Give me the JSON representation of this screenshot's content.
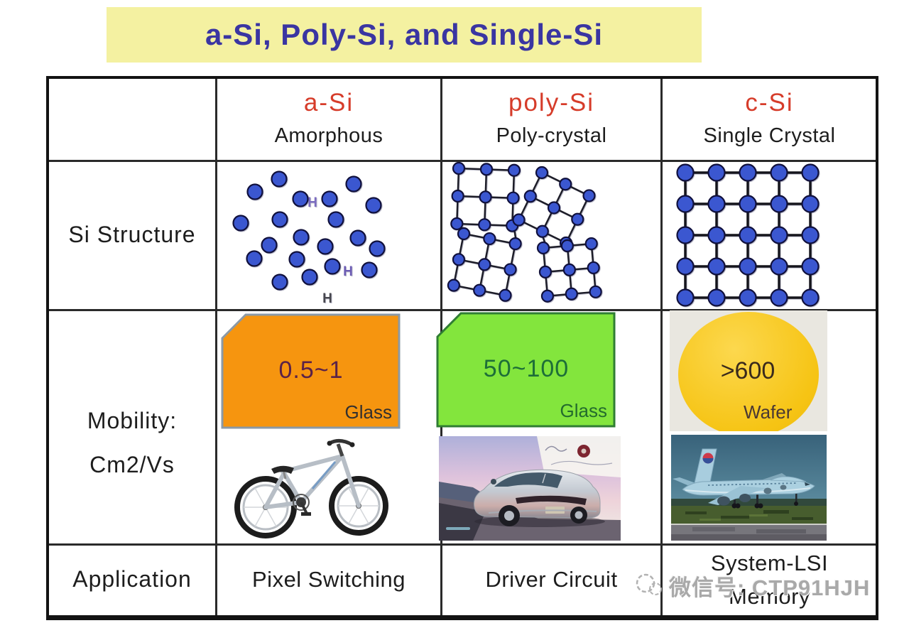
{
  "slide": {
    "title": "a-Si, Poly-Si, and Single-Si"
  },
  "colors": {
    "title_bg": "#f4f1a1",
    "title_text": "#3a35a2",
    "header_red": "#d63c2a",
    "grid_line": "#2a2a2a",
    "orange_panel": "#f6950f",
    "orange_text": "#5a2248",
    "green_panel": "#83e53d",
    "green_text": "#1d6e38",
    "wafer_yellow": "#f6c414",
    "atom_blue": "#3b57d0"
  },
  "row_labels": {
    "structure": "Si Structure",
    "mobility_line1": "Mobility:",
    "mobility_line2": "Cm2/Vs",
    "application": "Application"
  },
  "columns": [
    {
      "abbr": "a-Si",
      "name": "Amorphous",
      "mobility": "0.5~1",
      "substrate": "Glass",
      "application": "Pixel Switching"
    },
    {
      "abbr": "poly-Si",
      "name": "Poly-crystal",
      "mobility": "50~100",
      "substrate": "Glass",
      "application": "Driver Circuit"
    },
    {
      "abbr": "c-Si",
      "name": "Single Crystal",
      "mobility": ">600",
      "substrate": "Wafer",
      "application_line1": "System-LSI",
      "application_line2": "Memory"
    }
  ],
  "structure": {
    "hydrogen_label": "H"
  },
  "watermark": {
    "text": "微信号: CTP91HJH"
  }
}
